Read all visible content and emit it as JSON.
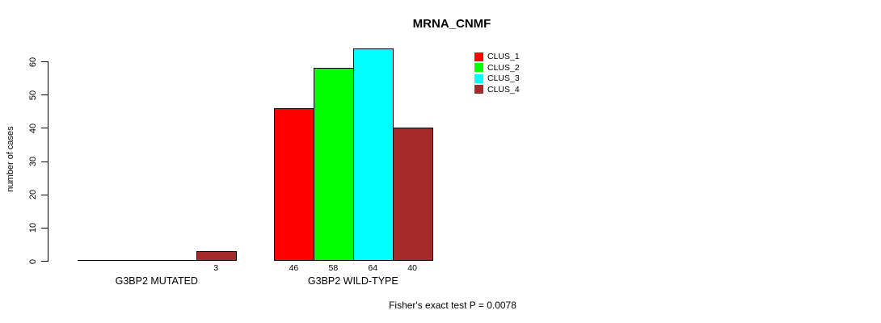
{
  "chart_data": {
    "type": "bar",
    "title": "MRNA_CNMF",
    "ylabel": "number of cases",
    "xlabel": "",
    "ylim": [
      0,
      60
    ],
    "yticks": [
      0,
      10,
      20,
      30,
      40,
      50,
      60
    ],
    "categories": [
      "G3BP2 MUTATED",
      "G3BP2 WILD-TYPE"
    ],
    "series": [
      {
        "name": "CLUS_1",
        "color": "#ff0000",
        "values": [
          0,
          46
        ]
      },
      {
        "name": "CLUS_2",
        "color": "#00ff00",
        "values": [
          0,
          58
        ]
      },
      {
        "name": "CLUS_3",
        "color": "#00ffff",
        "values": [
          0,
          64
        ]
      },
      {
        "name": "CLUS_4",
        "color": "#a52a2a",
        "values": [
          3,
          40
        ]
      }
    ],
    "bar_value_labels": [
      [
        "",
        "",
        "",
        "3"
      ],
      [
        "46",
        "58",
        "64",
        "40"
      ]
    ],
    "legend_position": "top-right",
    "grid": false,
    "annotation": "Fisher's exact test P = 0.0078"
  },
  "colors": {
    "background": "#ffffff",
    "axis": "#000000",
    "text": "#000000"
  }
}
